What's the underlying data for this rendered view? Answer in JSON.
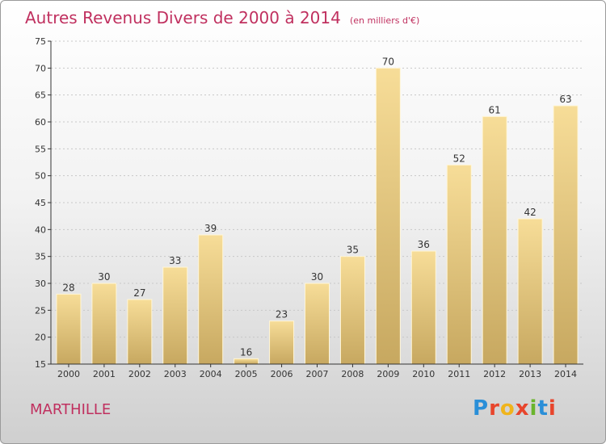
{
  "header": {
    "title": "Autres Revenus Divers de 2000 à 2014",
    "subtitle": "(en milliers d'€)"
  },
  "footer": {
    "place": "MARTHILLE",
    "brand": "Proxiti",
    "brand_colors": [
      "#2a8fd8",
      "#e8452c",
      "#f0b41c",
      "#e8452c",
      "#6ab42d",
      "#2a8fd8",
      "#e8452c"
    ]
  },
  "colors": {
    "bar_light": "#f7dd98",
    "bar_dark": "#c7a860",
    "axis": "#333333",
    "grid": "#c8c8c8",
    "title": "#c0305f"
  },
  "chart_data": {
    "type": "bar",
    "title": "Autres Revenus Divers de 2000 à 2014",
    "subtitle": "(en milliers d'€)",
    "xlabel": "",
    "ylabel": "",
    "categories": [
      "2000",
      "2001",
      "2002",
      "2003",
      "2004",
      "2005",
      "2006",
      "2007",
      "2008",
      "2009",
      "2010",
      "2011",
      "2012",
      "2013",
      "2014"
    ],
    "values": [
      28,
      30,
      27,
      33,
      39,
      16,
      23,
      30,
      35,
      70,
      36,
      52,
      61,
      42,
      63
    ],
    "ylim": [
      15,
      75
    ],
    "yticks": [
      15,
      20,
      25,
      30,
      35,
      40,
      45,
      50,
      55,
      60,
      65,
      70,
      75
    ],
    "grid": true,
    "data_labels": true
  }
}
